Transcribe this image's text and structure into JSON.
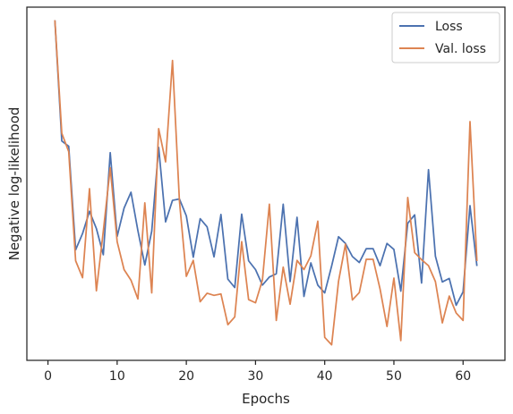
{
  "chart_data": {
    "type": "line",
    "title": "",
    "xlabel": "Epochs",
    "ylabel": "Negative log-likelihood",
    "xlim": [
      -3.05,
      66.05
    ],
    "ylim": [
      0,
      100
    ],
    "x_ticks": [
      0,
      10,
      20,
      30,
      40,
      50,
      60
    ],
    "y_ticks_labeled": false,
    "grid": false,
    "legend_position": "top-right",
    "x": [
      1,
      2,
      3,
      4,
      5,
      6,
      7,
      8,
      9,
      10,
      11,
      12,
      13,
      14,
      15,
      16,
      17,
      18,
      19,
      20,
      21,
      22,
      23,
      24,
      25,
      26,
      27,
      28,
      29,
      30,
      31,
      32,
      33,
      34,
      35,
      36,
      37,
      38,
      39,
      40,
      41,
      42,
      43,
      44,
      45,
      46,
      47,
      48,
      49,
      50,
      51,
      52,
      53,
      54,
      55,
      56,
      57,
      58,
      59,
      60,
      61,
      62
    ],
    "series": [
      {
        "name": "Loss",
        "color": "#4c72b0",
        "values": [
          96.3,
          62.1,
          60.6,
          31.3,
          35.9,
          42.2,
          37.3,
          29.9,
          58.8,
          35.1,
          43.1,
          47.6,
          36.7,
          27.0,
          36.6,
          60.3,
          39.2,
          45.3,
          45.7,
          40.9,
          29.2,
          40.1,
          37.8,
          29.3,
          41.3,
          23.0,
          20.6,
          41.4,
          28.2,
          25.7,
          21.3,
          23.6,
          24.5,
          44.2,
          22.3,
          40.5,
          18.1,
          27.6,
          21.3,
          19.1,
          26.7,
          35.0,
          33.1,
          29.4,
          27.7,
          31.6,
          31.6,
          26.8,
          33.1,
          31.4,
          19.6,
          38.8,
          41.2,
          21.9,
          54.0,
          29.5,
          22.2,
          23.2,
          15.6,
          19.4,
          43.8,
          26.7
        ]
      },
      {
        "name": "Val. loss",
        "color": "#dd8452",
        "values": [
          96.3,
          64.3,
          59.1,
          28.2,
          23.4,
          48.6,
          19.7,
          36.6,
          54.5,
          33.6,
          25.7,
          22.7,
          17.4,
          44.6,
          19.1,
          65.6,
          56.2,
          84.9,
          45.2,
          23.8,
          28.3,
          16.6,
          19.0,
          18.4,
          18.8,
          10.1,
          12.3,
          33.6,
          17.2,
          16.3,
          22.8,
          44.2,
          11.3,
          26.4,
          15.9,
          28.3,
          25.7,
          29.6,
          39.4,
          6.5,
          4.4,
          22.4,
          32.9,
          17.1,
          19.2,
          28.6,
          28.6,
          20.2,
          9.6,
          23.3,
          5.6,
          46.1,
          30.5,
          28.5,
          26.8,
          22.3,
          10.6,
          18.2,
          13.4,
          11.3,
          67.6,
          28.1
        ]
      }
    ]
  }
}
